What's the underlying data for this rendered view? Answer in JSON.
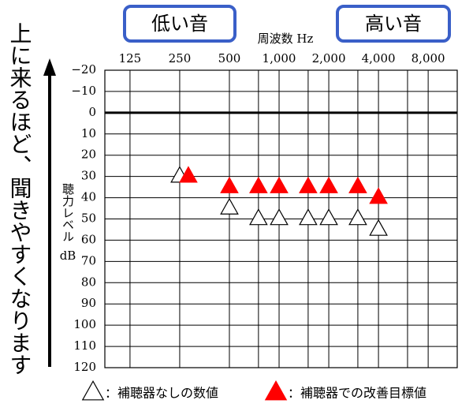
{
  "chart_data": {
    "type": "scatter",
    "marker": "triangle",
    "log_x": true,
    "grid": true,
    "xlabel": "周波数 Hz",
    "ylabel": "聴力レベル",
    "yunit": "dB",
    "side_note": "上に来るほど、聞きやすくなります",
    "annotations": [
      "低い音",
      "高い音"
    ],
    "xlim": [
      88,
      12000
    ],
    "xticks": [
      125,
      250,
      500,
      {
        "value": 1000,
        "label": "1,000"
      },
      {
        "value": 2000,
        "label": "2,000"
      },
      {
        "value": 4000,
        "label": "4,000"
      },
      {
        "value": 8000,
        "label": "8,000"
      }
    ],
    "xminor": [
      750,
      1500,
      3000,
      6000
    ],
    "ylim": [
      -20,
      120
    ],
    "yticks": [
      {
        "value": -20,
        "label": "−20"
      },
      {
        "value": -10,
        "label": "−10"
      },
      0,
      10,
      20,
      30,
      40,
      50,
      60,
      70,
      80,
      90,
      100,
      110,
      120
    ],
    "zero_line": true,
    "series": [
      {
        "name": "：補聴器なしの数値",
        "color": "#ffffff",
        "edgecolor": "#000000",
        "x": [
          250,
          500,
          750,
          1000,
          1500,
          2000,
          3000,
          4000
        ],
        "values": [
          30,
          45,
          50,
          50,
          50,
          50,
          50,
          55
        ]
      },
      {
        "name": "：補聴器での改善目標値",
        "color": "#ff0000",
        "edgecolor": "#ff0000",
        "x": [
          250,
          500,
          750,
          1000,
          1500,
          2000,
          3000,
          4000
        ],
        "values": [
          30,
          35,
          35,
          35,
          35,
          35,
          35,
          40
        ]
      }
    ]
  }
}
